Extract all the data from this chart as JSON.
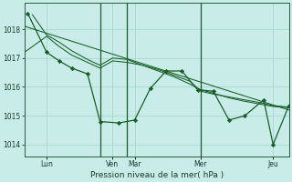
{
  "background_color": "#c8ede8",
  "grid_color": "#a8d8d0",
  "line_color": "#1a5c28",
  "marker_color": "#1a5c28",
  "xlabel": "Pression niveau de la mer( hPa )",
  "ylim": [
    1013.6,
    1018.9
  ],
  "xlim": [
    0,
    168
  ],
  "yticks": [
    1014,
    1015,
    1016,
    1017,
    1018
  ],
  "xtick_positions": [
    14,
    56,
    70,
    112,
    158
  ],
  "xtick_labels": [
    "Lun",
    "Ven",
    "Mar",
    "Mer",
    "Jeu"
  ],
  "vline_x": [
    48,
    65,
    112
  ],
  "trend_x": [
    0,
    168
  ],
  "trend_y": [
    1018.1,
    1015.2
  ],
  "s1_x": [
    0,
    14,
    22,
    30,
    48,
    56,
    65,
    75,
    85,
    95,
    105,
    112,
    120,
    130,
    140,
    150,
    158,
    168
  ],
  "s1_y": [
    1017.2,
    1017.75,
    1017.4,
    1017.1,
    1016.65,
    1016.9,
    1016.85,
    1016.75,
    1016.6,
    1016.4,
    1016.2,
    1015.85,
    1015.75,
    1015.65,
    1015.55,
    1015.45,
    1015.35,
    1015.3
  ],
  "s2_x": [
    5,
    14,
    22,
    30,
    40,
    48,
    56,
    65,
    75,
    85,
    95,
    105,
    112,
    120,
    130,
    140,
    150,
    158,
    168
  ],
  "s2_y": [
    1018.5,
    1017.8,
    1017.55,
    1017.25,
    1016.95,
    1016.75,
    1017.0,
    1016.95,
    1016.75,
    1016.55,
    1016.35,
    1016.1,
    1015.9,
    1015.78,
    1015.62,
    1015.5,
    1015.4,
    1015.32,
    1015.28
  ],
  "main_x": [
    2,
    14,
    22,
    30,
    40,
    48,
    60,
    70,
    80,
    90,
    100,
    110,
    120,
    130,
    140,
    152,
    158,
    168
  ],
  "main_y": [
    1018.55,
    1017.2,
    1016.9,
    1016.65,
    1016.45,
    1014.8,
    1014.75,
    1014.85,
    1015.95,
    1016.55,
    1016.55,
    1015.9,
    1015.85,
    1014.85,
    1015.0,
    1015.55,
    1014.0,
    1015.35
  ],
  "main_lw": 0.9,
  "line_lw": 0.8,
  "ms": 2.2
}
